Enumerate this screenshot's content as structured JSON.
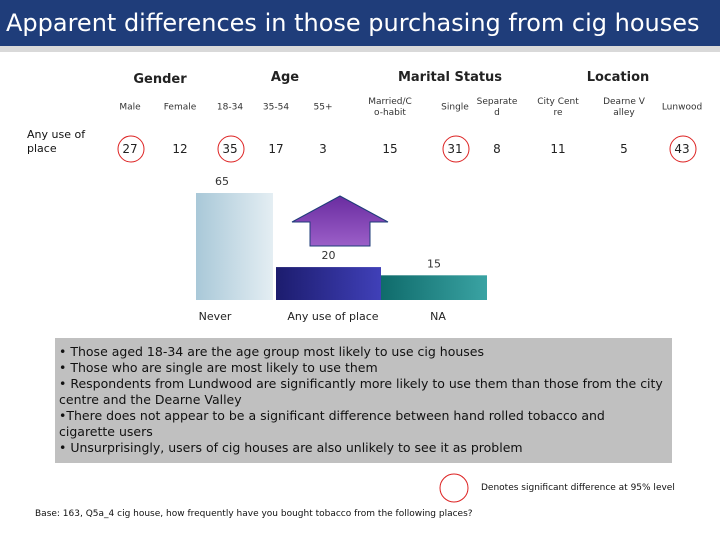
{
  "header": {
    "title": "Apparent differences in those purchasing from cig houses"
  },
  "table": {
    "groups": [
      "Gender",
      "Age",
      "Marital Status",
      "Location"
    ],
    "columns": [
      "Male",
      "Female",
      "18-34",
      "35-54",
      "55+",
      "Married/Co-habit",
      "Single",
      "Separated",
      "City Centre",
      "Dearne Valley",
      "Lunwood"
    ],
    "row_label": "Any use of place",
    "values": [
      27,
      12,
      35,
      17,
      3,
      15,
      31,
      8,
      11,
      5,
      43
    ],
    "circled": [
      true,
      false,
      true,
      false,
      false,
      false,
      true,
      false,
      false,
      false,
      true
    ]
  },
  "chart": {
    "type": "bar",
    "categories": [
      "Never",
      "Any use of place",
      "NA"
    ],
    "values": [
      65,
      20,
      15
    ]
  },
  "bullets": [
    "• Those aged 18-34 are the age group most likely to use cig houses",
    "• Those who are single are most likely to use them",
    "• Respondents from Lundwood are significantly more likely to use them than those from the city centre and the Dearne Valley",
    "•There does not appear to be a significant difference between hand rolled tobacco and cigarette users",
    "• Unsurprisingly, users of cig houses are also unlikely to see it as problem"
  ],
  "legend_note": "Denotes significant difference at 95% level",
  "base_note": "Base: 163, Q5a_4 cig house, how frequently have you bought tobacco from the following places?"
}
